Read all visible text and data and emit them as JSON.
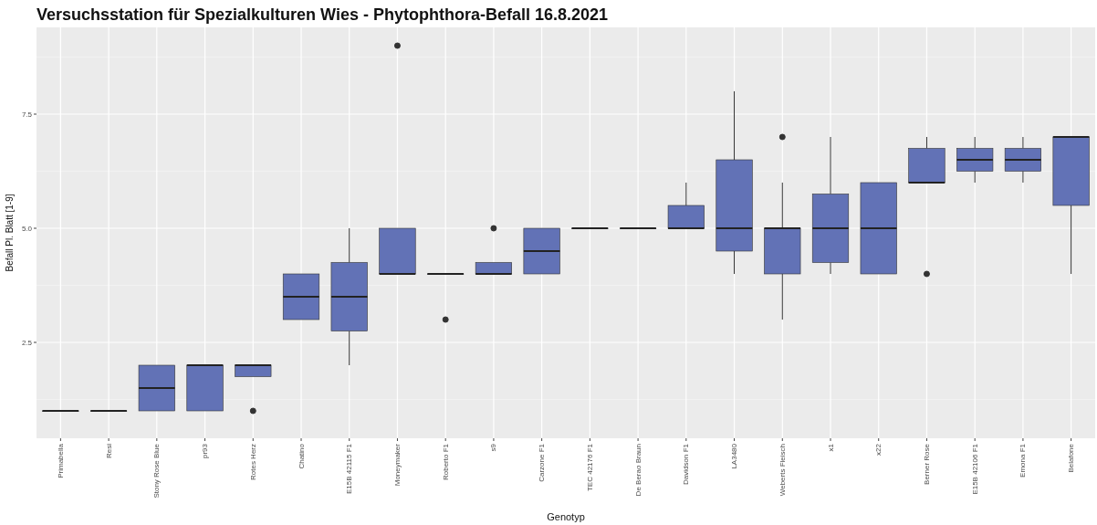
{
  "chart_data": {
    "type": "box",
    "title": "Versuchsstation für Spezialkulturen Wies - Phytophthora-Befall 16.8.2021",
    "xlabel": "Genotyp",
    "ylabel": "Befall Pl. Blatt [1-9]",
    "categories": [
      "Primabella",
      "Resi",
      "Stony Rose Blue",
      "pr93",
      "Rotes Herz",
      "Chatino",
      "E15B 42115 F1",
      "Moneymaker",
      "Roberto F1",
      "s9",
      "Carzone F1",
      "TEC 42176 F1",
      "De Berao Braun",
      "Davidson F1",
      "LA3480",
      "Weberts Fleisch",
      "x1",
      "x22",
      "Berner Rose",
      "E15B 42106 F1",
      "Emona F1",
      "Belafone"
    ],
    "color": "#6272b6",
    "ylim": [
      0.4,
      9.4
    ],
    "yticks": [
      {
        "value": 2.5,
        "label": "2.5"
      },
      {
        "value": 5,
        "label": "5.0"
      },
      {
        "value": 7.5,
        "label": "7.5"
      }
    ],
    "grid": true,
    "boxes": [
      {
        "low": 1,
        "q1": 1,
        "median": 1,
        "q3": 1,
        "high": 1
      },
      {
        "low": 1,
        "q1": 1,
        "median": 1,
        "q3": 1,
        "high": 1
      },
      {
        "low": 1,
        "q1": 1,
        "median": 1.5,
        "q3": 2,
        "high": 2
      },
      {
        "low": 1,
        "q1": 1,
        "median": 2,
        "q3": 2,
        "high": 2
      },
      {
        "low": 1.75,
        "q1": 1.75,
        "median": 2,
        "q3": 2,
        "high": 2,
        "outliers": [
          1
        ]
      },
      {
        "low": 3,
        "q1": 3,
        "median": 3.5,
        "q3": 4,
        "high": 4
      },
      {
        "low": 2,
        "q1": 2.75,
        "median": 3.5,
        "q3": 4.25,
        "high": 5
      },
      {
        "low": 4,
        "q1": 4,
        "median": 4,
        "q3": 5,
        "high": 5,
        "outliers": [
          9
        ]
      },
      {
        "low": 4,
        "q1": 4,
        "median": 4,
        "q3": 4,
        "high": 4,
        "outliers": [
          3
        ]
      },
      {
        "low": 4,
        "q1": 4,
        "median": 4,
        "q3": 4.25,
        "high": 4.25,
        "outliers": [
          5
        ]
      },
      {
        "low": 4,
        "q1": 4,
        "median": 4.5,
        "q3": 5,
        "high": 5
      },
      {
        "low": 5,
        "q1": 5,
        "median": 5,
        "q3": 5,
        "high": 5
      },
      {
        "low": 5,
        "q1": 5,
        "median": 5,
        "q3": 5,
        "high": 5
      },
      {
        "low": 5,
        "q1": 5,
        "median": 5,
        "q3": 5.5,
        "high": 6
      },
      {
        "low": 4,
        "q1": 4.5,
        "median": 5,
        "q3": 6.5,
        "high": 8
      },
      {
        "low": 3,
        "q1": 4,
        "median": 5,
        "q3": 5,
        "high": 6,
        "outliers": [
          7
        ]
      },
      {
        "low": 4,
        "q1": 4.25,
        "median": 5,
        "q3": 5.75,
        "high": 7
      },
      {
        "low": 4,
        "q1": 4,
        "median": 5,
        "q3": 6,
        "high": 6
      },
      {
        "low": 6,
        "q1": 6,
        "median": 6,
        "q3": 6.75,
        "high": 7,
        "outliers": [
          4
        ]
      },
      {
        "low": 6,
        "q1": 6.25,
        "median": 6.5,
        "q3": 6.75,
        "high": 7
      },
      {
        "low": 6,
        "q1": 6.25,
        "median": 6.5,
        "q3": 6.75,
        "high": 7
      },
      {
        "low": 4,
        "q1": 5.5,
        "median": 7,
        "q3": 7,
        "high": 7
      }
    ]
  }
}
